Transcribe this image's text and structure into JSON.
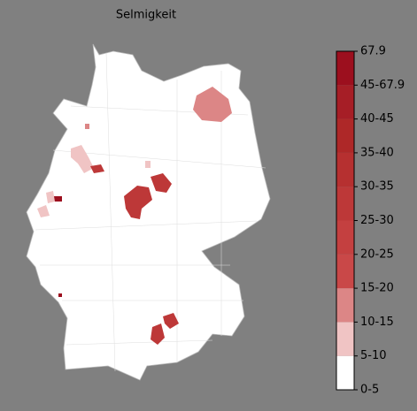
{
  "title": "Selmigkeit",
  "colorbar": {
    "labels": [
      "0-5",
      "5-10",
      "10-15",
      "15-20",
      "20-25",
      "25-30",
      "30-35",
      "35-40",
      "40-45",
      "45-67.9",
      "67.9"
    ],
    "colors": [
      "#ffffff",
      "#f0c4c4",
      "#dc8686",
      "#c94848",
      "#c44040",
      "#bd3838",
      "#b63030",
      "#ae2828",
      "#a61e26",
      "#9c0f1e"
    ]
  }
}
